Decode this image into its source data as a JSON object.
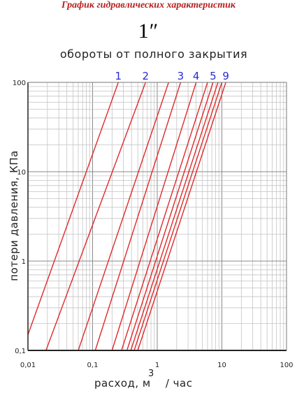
{
  "chart_data": {
    "type": "line",
    "title": "График гидравлических характеристик",
    "size_label": "1″",
    "subtitle": "обороты от полного закрытия",
    "xlabel": "расход, м",
    "xlabel_sup": "3",
    "xlabel_tail": "/ час",
    "ylabel": "потери давления, КПа",
    "x_scale": "log",
    "y_scale": "log",
    "xlim": [
      0.01,
      100
    ],
    "ylim": [
      0.1,
      100
    ],
    "x_ticks": [
      {
        "value": 0.01,
        "label": "0,01"
      },
      {
        "value": 0.1,
        "label": "0,1"
      },
      {
        "value": 1,
        "label": "1"
      },
      {
        "value": 10,
        "label": "10"
      },
      {
        "value": 100,
        "label": "100"
      }
    ],
    "y_ticks": [
      {
        "value": 0.1,
        "label": "0,1"
      },
      {
        "value": 1,
        "label": "1"
      },
      {
        "value": 10,
        "label": "10"
      },
      {
        "value": 100,
        "label": "100"
      }
    ],
    "grid": true,
    "line_color": "#e02a2a",
    "label_color": "#2b2bd6",
    "series": [
      {
        "name": "1",
        "points": [
          [
            0.01,
            0.15
          ],
          [
            0.25,
            100
          ]
        ]
      },
      {
        "name": "2",
        "points": [
          [
            0.019,
            0.1
          ],
          [
            0.66,
            100
          ]
        ]
      },
      {
        "name": "",
        "points": [
          [
            0.06,
            0.1
          ],
          [
            1.5,
            100
          ]
        ]
      },
      {
        "name": "3",
        "points": [
          [
            0.11,
            0.1
          ],
          [
            2.3,
            100
          ]
        ]
      },
      {
        "name": "4",
        "points": [
          [
            0.2,
            0.1
          ],
          [
            4.0,
            100
          ]
        ]
      },
      {
        "name": "",
        "points": [
          [
            0.28,
            0.1
          ],
          [
            6.0,
            100
          ]
        ]
      },
      {
        "name": "5",
        "points": [
          [
            0.34,
            0.1
          ],
          [
            7.3,
            100
          ]
        ]
      },
      {
        "name": "",
        "points": [
          [
            0.39,
            0.1
          ],
          [
            8.7,
            100
          ]
        ]
      },
      {
        "name": "",
        "points": [
          [
            0.44,
            0.1
          ],
          [
            10.0,
            100
          ]
        ]
      },
      {
        "name": "9",
        "points": [
          [
            0.5,
            0.1
          ],
          [
            11.5,
            100
          ]
        ]
      }
    ]
  }
}
